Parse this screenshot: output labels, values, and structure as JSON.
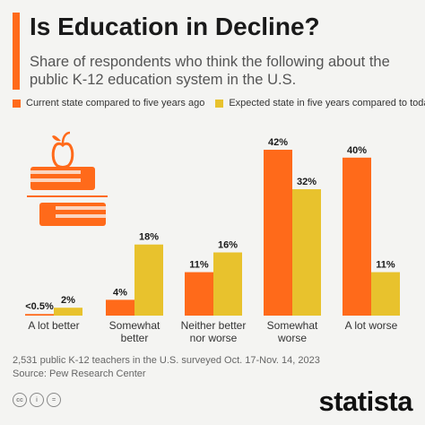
{
  "header": {
    "title": "Is Education in Decline?",
    "subtitle": "Share of respondents who think the following about the public K-12 education system in the U.S."
  },
  "colors": {
    "accent": "#ff6a1a",
    "series_current": "#ff6a1a",
    "series_expected": "#e8c22d"
  },
  "chart_data": {
    "type": "bar",
    "categories": [
      "A lot better",
      "Somewhat better",
      "Neither better nor worse",
      "Somewhat worse",
      "A lot worse"
    ],
    "category_lines": [
      [
        "A lot better"
      ],
      [
        "Somewhat",
        "better"
      ],
      [
        "Neither better",
        "nor worse"
      ],
      [
        "Somewhat",
        "worse"
      ],
      [
        "A lot worse"
      ]
    ],
    "series": [
      {
        "name": "Current state compared to five years ago",
        "values": [
          0.4,
          4,
          11,
          42,
          40
        ],
        "labels": [
          "<0.5%",
          "4%",
          "11%",
          "42%",
          "40%"
        ]
      },
      {
        "name": "Expected state in five years compared to today",
        "values": [
          2,
          18,
          16,
          32,
          11
        ],
        "labels": [
          "2%",
          "18%",
          "16%",
          "32%",
          "11%"
        ]
      }
    ],
    "ylim": [
      0,
      42
    ],
    "legend_position": "top-left",
    "grid": false
  },
  "footnote": {
    "note": "2,531 public K-12 teachers in the U.S. surveyed Oct. 17-Nov. 14, 2023",
    "source": "Source: Pew Research Center"
  },
  "footer": {
    "brand": "statista",
    "icons": [
      "creative-commons-icon",
      "attribution-icon",
      "no-derivatives-icon"
    ],
    "icon_glyphs": [
      "cc",
      "i",
      "="
    ]
  }
}
